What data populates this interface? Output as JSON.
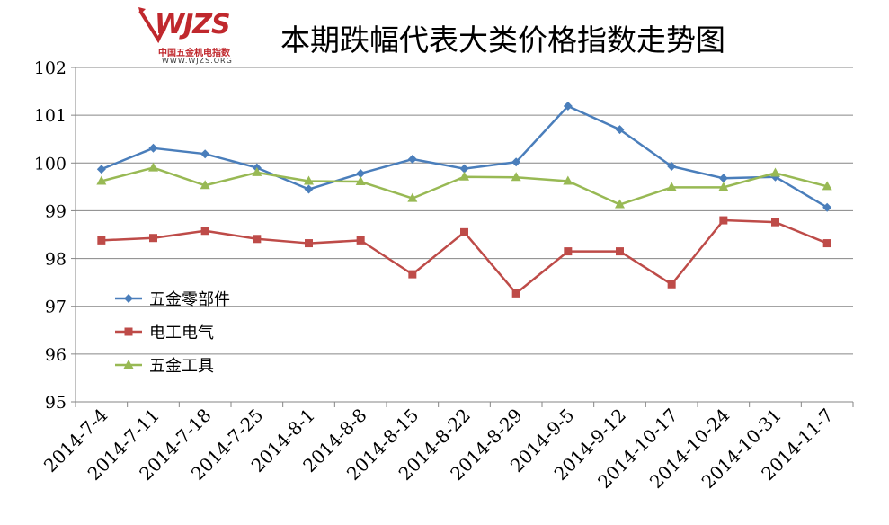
{
  "logo": {
    "mark": "WJZS",
    "name_cn": "中国五金机电指数",
    "url": "WWW.WJZS.ORG"
  },
  "chart_data": {
    "type": "line",
    "title": "本期跌幅代表大类价格指数走势图",
    "xlabel": "",
    "ylabel": "",
    "ylim": [
      95,
      102
    ],
    "yticks": [
      95,
      96,
      97,
      98,
      99,
      100,
      101,
      102
    ],
    "grid": true,
    "legend_position": "center-left",
    "categories": [
      "2014-7-4",
      "2014-7-11",
      "2014-7-18",
      "2014-7-25",
      "2014-8-1",
      "2014-8-8",
      "2014-8-15",
      "2014-8-22",
      "2014-8-29",
      "2014-9-5",
      "2014-9-12",
      "2014-10-17",
      "2014-10-24",
      "2014-10-31",
      "2014-11-7"
    ],
    "series": [
      {
        "name": "五金零部件",
        "color": "#4a7ebb",
        "marker": "diamond",
        "values": [
          99.87,
          100.31,
          100.19,
          99.9,
          99.45,
          99.78,
          100.08,
          99.88,
          100.02,
          101.19,
          100.7,
          99.93,
          99.68,
          99.71,
          99.07
        ]
      },
      {
        "name": "电工电气",
        "color": "#be4b48",
        "marker": "square",
        "values": [
          98.38,
          98.43,
          98.58,
          98.41,
          98.32,
          98.38,
          97.67,
          98.55,
          97.27,
          98.15,
          98.15,
          97.46,
          98.8,
          98.76,
          98.32
        ]
      },
      {
        "name": "五金工具",
        "color": "#98b954",
        "marker": "triangle",
        "values": [
          99.62,
          99.9,
          99.53,
          99.8,
          99.62,
          99.61,
          99.26,
          99.71,
          99.7,
          99.62,
          99.13,
          99.49,
          99.49,
          99.79,
          99.51
        ]
      }
    ]
  }
}
